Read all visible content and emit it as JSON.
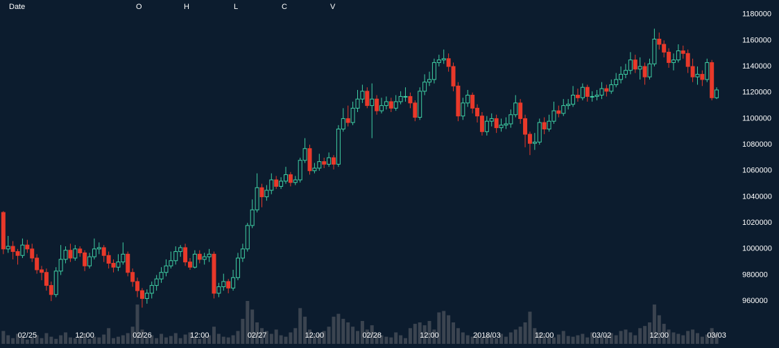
{
  "chart_data": {
    "type": "candlestick",
    "header": [
      "Date",
      "O",
      "H",
      "L",
      "C",
      "V"
    ],
    "up_color": "#3fcfa4",
    "down_color": "#e8392a",
    "volume_color": "#3b4450",
    "ylim": [
      924000,
      1191000
    ],
    "yticks": [
      960000,
      980000,
      1000000,
      1020000,
      1040000,
      1060000,
      1080000,
      1100000,
      1120000,
      1140000,
      1160000,
      1180000
    ],
    "xlim": [
      -0.7,
      152.9
    ],
    "xticks": [
      {
        "value": 5,
        "label": "02/25"
      },
      {
        "value": 17,
        "label": "12:00"
      },
      {
        "value": 29,
        "label": "02/26"
      },
      {
        "value": 41,
        "label": "12:00"
      },
      {
        "value": 53,
        "label": "02/27"
      },
      {
        "value": 65,
        "label": "12:00"
      },
      {
        "value": 77,
        "label": "02/28"
      },
      {
        "value": 89,
        "label": "12:00"
      },
      {
        "value": 101,
        "label": "2018/03"
      },
      {
        "value": 113,
        "label": "12:00"
      },
      {
        "value": 125,
        "label": "03/02"
      },
      {
        "value": 137,
        "label": "12:00"
      },
      {
        "value": 149,
        "label": "03/03"
      }
    ],
    "open": [
      1028000,
      1000000,
      1002000,
      998000,
      995000,
      1003000,
      1000000,
      993000,
      984000,
      982000,
      972000,
      965000,
      983000,
      992000,
      999000,
      993000,
      1000000,
      997000,
      987000,
      994000,
      1000000,
      1001000,
      995000,
      989000,
      986000,
      990000,
      996000,
      982000,
      975000,
      968000,
      962000,
      966000,
      972000,
      977000,
      982000,
      987000,
      991000,
      998000,
      1001000,
      990000,
      986000,
      996000,
      992000,
      994000,
      996000,
      966000,
      971000,
      975000,
      970000,
      978000,
      993000,
      1000000,
      1018000,
      1030000,
      1047000,
      1040000,
      1045000,
      1053000,
      1048000,
      1052000,
      1057000,
      1051000,
      1053000,
      1068000,
      1077000,
      1060000,
      1062000,
      1067000,
      1065000,
      1070000,
      1065000,
      1092000,
      1100000,
      1097000,
      1108000,
      1115000,
      1121000,
      1110000,
      1115000,
      1106000,
      1110000,
      1113000,
      1108000,
      1113000,
      1117000,
      1117000,
      1112000,
      1101000,
      1121000,
      1128000,
      1130000,
      1143000,
      1145000,
      1146000,
      1140000,
      1125000,
      1102000,
      1112000,
      1118000,
      1108000,
      1102000,
      1090000,
      1098000,
      1100000,
      1093000,
      1095000,
      1096000,
      1103000,
      1112000,
      1100000,
      1088000,
      1081000,
      1082000,
      1097000,
      1092000,
      1098000,
      1106000,
      1104000,
      1110000,
      1111000,
      1118000,
      1116000,
      1124000,
      1117000,
      1117000,
      1118000,
      1123000,
      1121000,
      1126000,
      1130000,
      1134000,
      1137000,
      1145000,
      1138000,
      1140000,
      1132000,
      1142000,
      1161000,
      1157000,
      1151000,
      1143000,
      1145000,
      1152000,
      1150000,
      1140000,
      1132000,
      1134000,
      1130000,
      1143000,
      1116000
    ],
    "high": [
      1029000,
      1010000,
      1006000,
      1000000,
      1008000,
      1007000,
      1004000,
      996000,
      987000,
      985000,
      975000,
      986000,
      1003000,
      1002000,
      1004000,
      1003000,
      1002000,
      999000,
      997000,
      1008000,
      1005000,
      1003000,
      998000,
      992000,
      996000,
      1005000,
      998000,
      985000,
      978000,
      970000,
      969000,
      975000,
      980000,
      986000,
      992000,
      998000,
      1002000,
      1003000,
      1004000,
      993000,
      999000,
      999000,
      997000,
      1000000,
      998000,
      974000,
      981000,
      977000,
      984000,
      997000,
      1004000,
      1020000,
      1038000,
      1058000,
      1050000,
      1049000,
      1058000,
      1056000,
      1055000,
      1063000,
      1059000,
      1056000,
      1070000,
      1085000,
      1080000,
      1066000,
      1073000,
      1070000,
      1074000,
      1072000,
      1095000,
      1108000,
      1110000,
      1113000,
      1122000,
      1126000,
      1124000,
      1127000,
      1118000,
      1116000,
      1117000,
      1116000,
      1118000,
      1121000,
      1124000,
      1120000,
      1114000,
      1124000,
      1134000,
      1136000,
      1146000,
      1149000,
      1153000,
      1150000,
      1143000,
      1128000,
      1116000,
      1122000,
      1120000,
      1111000,
      1105000,
      1102000,
      1104000,
      1103000,
      1100000,
      1101000,
      1107000,
      1118000,
      1115000,
      1103000,
      1090000,
      1089000,
      1100000,
      1101000,
      1103000,
      1113000,
      1110000,
      1115000,
      1115000,
      1125000,
      1123000,
      1127000,
      1126000,
      1121000,
      1122000,
      1128000,
      1126000,
      1130000,
      1135000,
      1140000,
      1142000,
      1151000,
      1149000,
      1147000,
      1143000,
      1146000,
      1169000,
      1166000,
      1160000,
      1154000,
      1150000,
      1157000,
      1156000,
      1153000,
      1146000,
      1140000,
      1137000,
      1146000,
      1145000,
      1124000
    ],
    "low": [
      996000,
      997000,
      992000,
      988000,
      993000,
      997000,
      990000,
      981000,
      976000,
      968000,
      960000,
      963000,
      980000,
      989000,
      990000,
      991000,
      994000,
      983000,
      985000,
      992000,
      996000,
      990000,
      985000,
      982000,
      983000,
      988000,
      979000,
      971000,
      963000,
      955000,
      958000,
      962000,
      968000,
      974000,
      979000,
      985000,
      988000,
      994000,
      987000,
      984000,
      985000,
      989000,
      988000,
      990000,
      962000,
      963000,
      968000,
      966000,
      968000,
      976000,
      990000,
      998000,
      1016000,
      1028000,
      1032000,
      1037000,
      1042000,
      1046000,
      1046000,
      1050000,
      1048000,
      1049000,
      1051000,
      1066000,
      1057000,
      1058000,
      1060000,
      1062000,
      1063000,
      1061000,
      1063000,
      1090000,
      1094000,
      1095000,
      1105000,
      1112000,
      1108000,
      1085000,
      1103000,
      1104000,
      1107000,
      1105000,
      1106000,
      1111000,
      1113000,
      1108000,
      1098000,
      1099000,
      1118000,
      1125000,
      1127000,
      1140000,
      1142000,
      1136000,
      1121000,
      1098000,
      1099000,
      1109000,
      1104000,
      1097000,
      1087000,
      1087000,
      1094000,
      1089000,
      1090000,
      1092000,
      1093000,
      1101000,
      1096000,
      1078000,
      1072000,
      1076000,
      1080000,
      1088000,
      1090000,
      1096000,
      1101000,
      1102000,
      1107000,
      1109000,
      1113000,
      1114000,
      1113000,
      1113000,
      1114000,
      1115000,
      1117000,
      1119000,
      1124000,
      1127000,
      1131000,
      1134000,
      1135000,
      1130000,
      1126000,
      1130000,
      1140000,
      1153000,
      1147000,
      1139000,
      1137000,
      1143000,
      1146000,
      1135000,
      1128000,
      1126000,
      1125000,
      1128000,
      1114000,
      1115000
    ],
    "close": [
      1000000,
      1002000,
      998000,
      995000,
      1003000,
      1000000,
      993000,
      984000,
      982000,
      972000,
      965000,
      983000,
      992000,
      999000,
      993000,
      1000000,
      997000,
      987000,
      994000,
      1000000,
      1001000,
      995000,
      989000,
      986000,
      990000,
      996000,
      982000,
      975000,
      968000,
      962000,
      966000,
      972000,
      977000,
      982000,
      987000,
      991000,
      998000,
      1001000,
      990000,
      986000,
      996000,
      992000,
      994000,
      996000,
      966000,
      971000,
      975000,
      970000,
      978000,
      993000,
      1000000,
      1018000,
      1030000,
      1047000,
      1040000,
      1045000,
      1053000,
      1048000,
      1052000,
      1057000,
      1051000,
      1053000,
      1068000,
      1077000,
      1060000,
      1062000,
      1067000,
      1065000,
      1070000,
      1065000,
      1092000,
      1100000,
      1097000,
      1108000,
      1115000,
      1121000,
      1110000,
      1115000,
      1106000,
      1110000,
      1113000,
      1108000,
      1113000,
      1117000,
      1117000,
      1112000,
      1101000,
      1121000,
      1128000,
      1130000,
      1143000,
      1145000,
      1146000,
      1140000,
      1125000,
      1102000,
      1112000,
      1118000,
      1108000,
      1102000,
      1090000,
      1098000,
      1100000,
      1093000,
      1095000,
      1096000,
      1103000,
      1112000,
      1100000,
      1088000,
      1081000,
      1082000,
      1097000,
      1092000,
      1098000,
      1106000,
      1104000,
      1110000,
      1111000,
      1118000,
      1116000,
      1124000,
      1117000,
      1117000,
      1118000,
      1123000,
      1121000,
      1126000,
      1130000,
      1134000,
      1137000,
      1145000,
      1138000,
      1140000,
      1132000,
      1142000,
      1161000,
      1157000,
      1151000,
      1143000,
      1145000,
      1152000,
      1150000,
      1140000,
      1132000,
      1134000,
      1130000,
      1143000,
      1116000,
      1122000
    ],
    "volume": [
      18,
      12,
      8,
      14,
      10,
      6,
      9,
      12,
      8,
      15,
      10,
      7,
      12,
      16,
      9,
      8,
      11,
      14,
      7,
      10,
      9,
      13,
      22,
      8,
      10,
      12,
      15,
      24,
      55,
      20,
      10,
      12,
      8,
      14,
      9,
      11,
      15,
      8,
      13,
      16,
      9,
      7,
      10,
      12,
      24,
      14,
      10,
      9,
      12,
      18,
      35,
      60,
      48,
      30,
      22,
      18,
      14,
      20,
      12,
      10,
      16,
      22,
      50,
      38,
      20,
      12,
      14,
      18,
      24,
      38,
      42,
      35,
      30,
      24,
      18,
      32,
      20,
      26,
      14,
      12,
      10,
      9,
      16,
      12,
      8,
      22,
      28,
      30,
      26,
      32,
      20,
      44,
      46,
      40,
      30,
      22,
      16,
      12,
      10,
      14,
      9,
      12,
      11,
      8,
      14,
      10,
      16,
      20,
      24,
      30,
      45,
      22,
      16,
      12,
      10,
      9,
      13,
      18,
      11,
      10,
      12,
      14,
      9,
      16,
      11,
      10,
      13,
      15,
      12,
      18,
      20,
      16,
      12,
      22,
      25,
      30,
      55,
      40,
      28,
      20,
      16,
      14,
      12,
      18,
      20,
      15,
      10,
      13,
      22,
      14
    ]
  }
}
